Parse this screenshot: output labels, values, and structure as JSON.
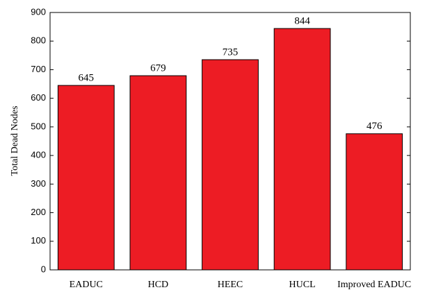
{
  "chart_data": {
    "type": "bar",
    "y_label": "Total Dead Nodes",
    "categories": [
      "EADUC",
      "HCD",
      "HEEC",
      "HUCL",
      "Improved EADUC"
    ],
    "values": [
      645,
      679,
      735,
      844,
      476
    ],
    "color": "#ed1c24",
    "ylim": [
      0,
      900
    ],
    "yticks": [
      0,
      100,
      200,
      300,
      400,
      500,
      600,
      700,
      800,
      900
    ],
    "grid": false
  }
}
